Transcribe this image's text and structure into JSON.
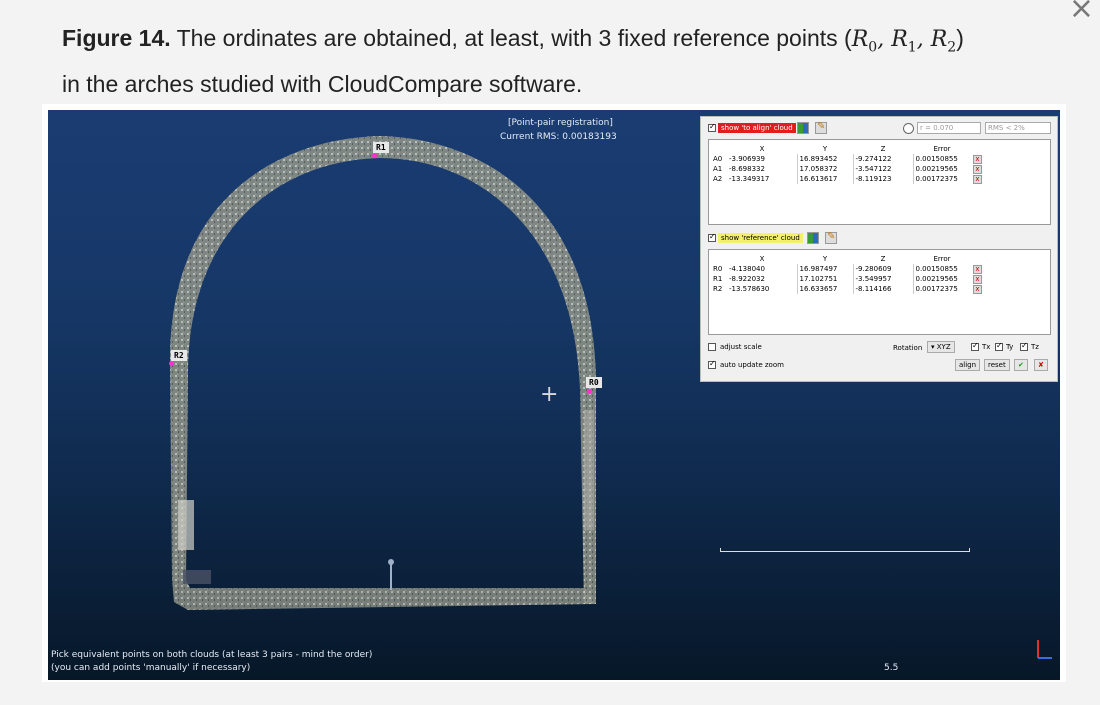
{
  "caption": {
    "figure_label": "Figure 14.",
    "text_before_math": " The ordinates are obtained, at least, with 3 fixed reference points (",
    "math": {
      "R0": "R",
      "R0_sub": "0",
      "R1": "R",
      "R1_sub": "1",
      "R2": "R",
      "R2_sub": "2",
      "sep": ", "
    },
    "text_after_math": ")",
    "line2": "in the arches studied with CloudCompare software."
  },
  "close_glyph": "×",
  "viewport": {
    "mode_title": "[Point-pair registration]",
    "current_rms": "Current RMS: 0.00183193",
    "labels": {
      "r0": "R0",
      "r1": "R1",
      "r2": "R2"
    },
    "hint_line1": "Pick equivalent points on both clouds (at least 3 pairs - mind the order)",
    "hint_line2": "(you can add points 'manually' if necessary)",
    "scale_value": "5.5",
    "crosshair": "+"
  },
  "dialog": {
    "show_to_align": "show 'to align' cloud",
    "radius_label": "r = 0.070",
    "rms_label": "RMS < 2%",
    "headers": [
      "X",
      "Y",
      "Z",
      "Error"
    ],
    "align_rows": [
      {
        "id": "A0",
        "x": "-3.906939",
        "y": "16.893452",
        "z": "-9.274122",
        "err": "0.00150855"
      },
      {
        "id": "A1",
        "x": "-8.698332",
        "y": "17.058372",
        "z": "-3.547122",
        "err": "0.00219565"
      },
      {
        "id": "A2",
        "x": "-13.349317",
        "y": "16.613617",
        "z": "-8.119123",
        "err": "0.00172375"
      }
    ],
    "show_reference": "show 'reference' cloud",
    "ref_rows": [
      {
        "id": "R0",
        "x": "-4.138040",
        "y": "16.987497",
        "z": "-9.280609",
        "err": "0.00150855"
      },
      {
        "id": "R1",
        "x": "-8.922032",
        "y": "17.102751",
        "z": "-3.549957",
        "err": "0.00219565"
      },
      {
        "id": "R2",
        "x": "-13.578630",
        "y": "16.633657",
        "z": "-8.114166",
        "err": "0.00172375"
      }
    ],
    "adjust_scale": "adjust scale",
    "auto_update_zoom": "auto update zoom",
    "rotation_label": "Rotation",
    "rotation_value": "XYZ",
    "tx": "Tx",
    "ty": "Ty",
    "tz": "Tz",
    "align_btn": "align",
    "reset_btn": "reset",
    "delete_glyph": "x"
  },
  "colors": {
    "viewport_top": "#1a3c72",
    "viewport_bottom": "#071728",
    "point_marker": "#ff2fd0",
    "highlight_red": "#e21d1d",
    "highlight_yellow": "#f3f16a"
  }
}
